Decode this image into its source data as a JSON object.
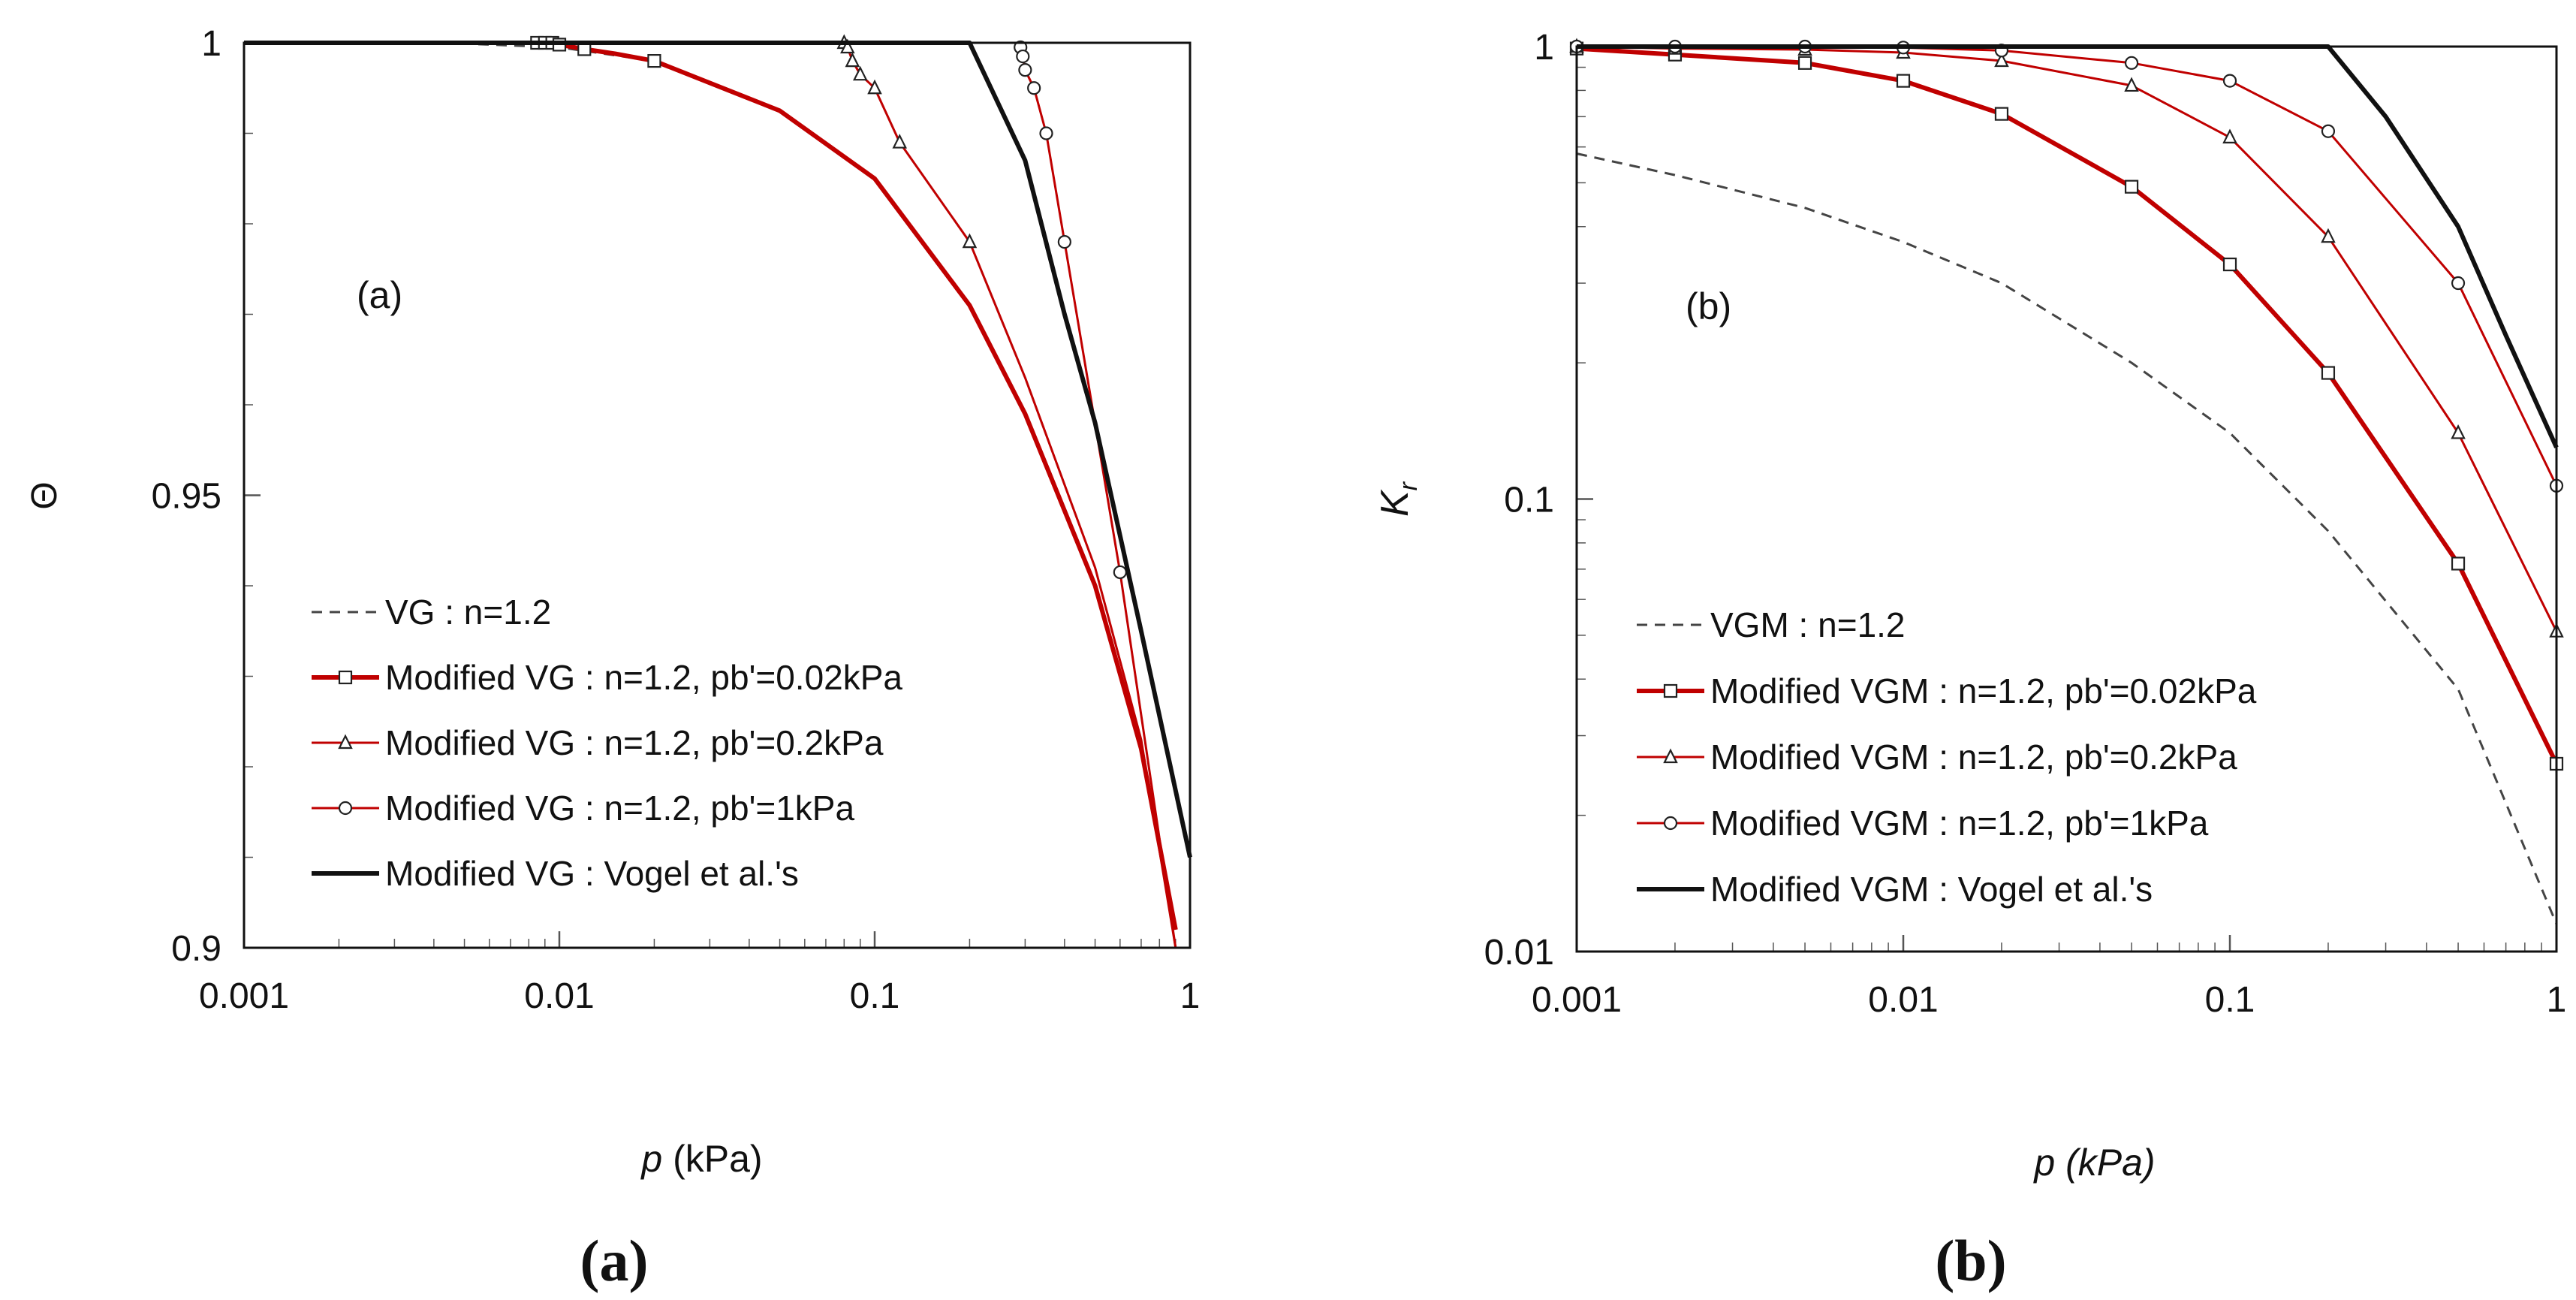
{
  "colors": {
    "red": "#c00000",
    "black": "#111111",
    "dashed": "#444444",
    "background": "#ffffff"
  },
  "panels": {
    "a": {
      "caption": "(a)"
    },
    "b": {
      "caption": "(b)"
    }
  },
  "chart_data": [
    {
      "id": "a",
      "type": "line",
      "x_scale": "log",
      "y_scale": "linear",
      "inset_label": "(a)",
      "ylabel": "Θ",
      "xlabel_italic": "p",
      "xlabel_rest": " (kPa)",
      "xlim": [
        0.001,
        1
      ],
      "ylim": [
        0.9,
        1
      ],
      "xticks": [
        {
          "value": 0.001,
          "label": "0.001"
        },
        {
          "value": 0.01,
          "label": "0.01"
        },
        {
          "value": 0.1,
          "label": "0.1"
        },
        {
          "value": 1,
          "label": "1"
        }
      ],
      "yticks": [
        {
          "value": 0.9,
          "label": "0.9"
        },
        {
          "value": 0.95,
          "label": "0.95"
        },
        {
          "value": 1,
          "label": "1"
        }
      ],
      "series": [
        {
          "name": "VG : n=1.2",
          "style": "dashed",
          "marker": "none",
          "x": [
            0.001,
            0.005,
            0.01,
            0.02,
            0.05,
            0.1,
            0.2,
            0.3,
            0.5,
            0.7,
            0.9
          ],
          "y": [
            1.0,
            0.9999,
            0.9995,
            0.998,
            0.9925,
            0.985,
            0.971,
            0.959,
            0.94,
            0.922,
            0.902
          ]
        },
        {
          "name": "Modified VG : n=1.2, pb'=0.02kPa",
          "style": "red-thick",
          "marker": "square",
          "x": [
            0.001,
            0.005,
            0.008,
            0.0085,
            0.009,
            0.0095,
            0.01,
            0.012,
            0.015,
            0.02,
            0.05,
            0.1,
            0.2,
            0.3,
            0.5,
            0.7,
            0.9
          ],
          "y": [
            1.0,
            1.0,
            1.0,
            1.0,
            1.0,
            1.0,
            0.9998,
            0.9993,
            0.9988,
            0.998,
            0.9925,
            0.985,
            0.971,
            0.959,
            0.94,
            0.922,
            0.902
          ],
          "marker_x": [
            0.0085,
            0.009,
            0.0095,
            0.01,
            0.012,
            0.02
          ]
        },
        {
          "name": "Modified VG : n=1.2, pb'=0.2kPa",
          "style": "red-thin",
          "marker": "triangle",
          "x": [
            0.001,
            0.05,
            0.08,
            0.082,
            0.085,
            0.09,
            0.1,
            0.12,
            0.2,
            0.3,
            0.5,
            0.7,
            0.9
          ],
          "y": [
            1.0,
            1.0,
            1.0,
            0.9995,
            0.998,
            0.9965,
            0.995,
            0.989,
            0.978,
            0.963,
            0.942,
            0.923,
            0.9
          ],
          "marker_x": [
            0.08,
            0.082,
            0.085,
            0.09,
            0.1,
            0.12,
            0.2
          ]
        },
        {
          "name": "Modified VG : n=1.2, pb'=1kPa",
          "style": "red-thin",
          "marker": "circle",
          "x": [
            0.001,
            0.28,
            0.29,
            0.295,
            0.3,
            0.32,
            0.35,
            0.4,
            0.6,
            0.9
          ],
          "y": [
            1.0,
            1.0,
            0.9995,
            0.9985,
            0.997,
            0.995,
            0.99,
            0.978,
            0.9415,
            0.9
          ],
          "marker_x": [
            0.29,
            0.295,
            0.3,
            0.32,
            0.35,
            0.4,
            0.6
          ]
        },
        {
          "name": "Modified VG : Vogel et al.'s",
          "style": "black-thick",
          "marker": "none",
          "x": [
            0.001,
            0.2,
            0.3,
            0.4,
            0.5,
            0.7,
            1.0
          ],
          "y": [
            1.0,
            1.0,
            0.987,
            0.97,
            0.958,
            0.935,
            0.91
          ]
        }
      ]
    },
    {
      "id": "b",
      "type": "line",
      "x_scale": "log",
      "y_scale": "log",
      "inset_label": "(b)",
      "ylabel_main": "K",
      "ylabel_sub": "r",
      "xlabel_italic": "p (kPa)",
      "xlabel_rest": "",
      "xlim": [
        0.001,
        1
      ],
      "ylim": [
        0.01,
        1
      ],
      "xticks": [
        {
          "value": 0.001,
          "label": "0.001"
        },
        {
          "value": 0.01,
          "label": "0.01"
        },
        {
          "value": 0.1,
          "label": "0.1"
        },
        {
          "value": 1,
          "label": "1"
        }
      ],
      "yticks": [
        {
          "value": 0.01,
          "label": "0.01"
        },
        {
          "value": 0.1,
          "label": "0.1"
        },
        {
          "value": 1,
          "label": "1"
        }
      ],
      "series": [
        {
          "name": "VGM : n=1.2",
          "style": "dashed",
          "marker": "none",
          "x": [
            0.001,
            0.002,
            0.005,
            0.01,
            0.02,
            0.05,
            0.1,
            0.2,
            0.5,
            1.0
          ],
          "y": [
            0.58,
            0.52,
            0.44,
            0.37,
            0.3,
            0.2,
            0.14,
            0.085,
            0.038,
            0.0115
          ]
        },
        {
          "name": "Modified VGM : n=1.2, pb'=0.02kPa",
          "style": "red-thick",
          "marker": "square",
          "x": [
            0.001,
            0.002,
            0.005,
            0.01,
            0.02,
            0.05,
            0.1,
            0.2,
            0.5,
            1.0
          ],
          "y": [
            0.99,
            0.96,
            0.92,
            0.84,
            0.71,
            0.49,
            0.33,
            0.19,
            0.072,
            0.026
          ],
          "marker_x": [
            0.001,
            0.002,
            0.005,
            0.01,
            0.02,
            0.05,
            0.1,
            0.2,
            0.5,
            1.0
          ]
        },
        {
          "name": "Modified VGM : n=1.2, pb'=0.2kPa",
          "style": "red-thin",
          "marker": "triangle",
          "x": [
            0.001,
            0.002,
            0.005,
            0.01,
            0.02,
            0.05,
            0.1,
            0.2,
            0.5,
            1.0
          ],
          "y": [
            1.0,
            0.99,
            0.985,
            0.97,
            0.93,
            0.82,
            0.63,
            0.38,
            0.14,
            0.051
          ],
          "marker_x": [
            0.001,
            0.002,
            0.005,
            0.01,
            0.02,
            0.05,
            0.1,
            0.2,
            0.5,
            1.0
          ]
        },
        {
          "name": "Modified VGM : n=1.2, pb'=1kPa",
          "style": "red-thin",
          "marker": "circle",
          "x": [
            0.001,
            0.002,
            0.005,
            0.01,
            0.02,
            0.05,
            0.1,
            0.2,
            0.5,
            1.0
          ],
          "y": [
            1.0,
            1.0,
            1.0,
            0.995,
            0.98,
            0.92,
            0.84,
            0.65,
            0.3,
            0.107
          ],
          "marker_x": [
            0.001,
            0.002,
            0.005,
            0.01,
            0.02,
            0.05,
            0.1,
            0.2,
            0.5,
            1.0
          ]
        },
        {
          "name": "Modified VGM : Vogel et al.'s",
          "style": "black-thick",
          "marker": "none",
          "x": [
            0.001,
            0.2,
            0.3,
            0.5,
            0.7,
            1.0
          ],
          "y": [
            1.0,
            1.0,
            0.7,
            0.4,
            0.23,
            0.13
          ]
        }
      ]
    }
  ]
}
